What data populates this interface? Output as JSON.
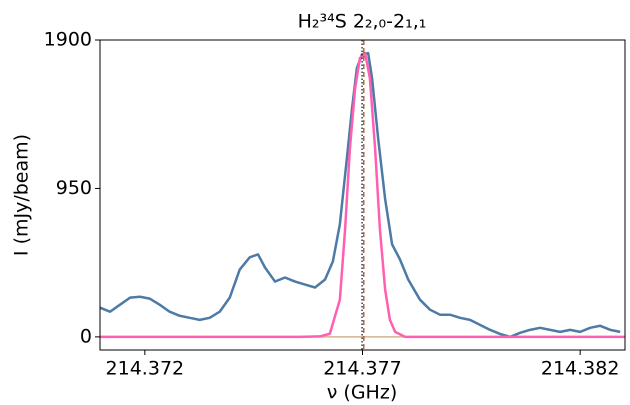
{
  "chart_data": {
    "type": "line",
    "title": "H₂³⁴S 2₂,₀-2₁,₁",
    "x_label": "ν (GHz)",
    "y_label": "I (mJy/beam)",
    "xlim": [
      214.37097,
      214.38303
    ],
    "ylim": [
      -84,
      1900
    ],
    "xticks": [
      214.372,
      214.377,
      214.382
    ],
    "yticks": [
      0,
      950,
      1900
    ],
    "series": [
      {
        "color": "#4e7aa6",
        "x": [
          214.37097,
          214.3712,
          214.37143,
          214.37166,
          214.37189,
          214.37211,
          214.37234,
          214.37257,
          214.3728,
          214.37303,
          214.37326,
          214.37349,
          214.37372,
          214.37395,
          214.37418,
          214.37441,
          214.3746,
          214.37476,
          214.37499,
          214.37522,
          214.37545,
          214.37568,
          214.37591,
          214.37614,
          214.37632,
          214.37648,
          214.37664,
          214.37676,
          214.37687,
          214.37699,
          214.37713,
          214.37722,
          214.37736,
          214.37752,
          214.37768,
          214.37786,
          214.37805,
          214.37832,
          214.37855,
          214.37878,
          214.37901,
          214.37924,
          214.37947,
          214.3797,
          214.37993,
          214.38016,
          214.38039,
          214.38062,
          214.38085,
          214.38108,
          214.38131,
          214.38154,
          214.38177,
          214.382,
          214.38223,
          214.38246,
          214.38269,
          214.38292
        ],
        "values": [
          187,
          161,
          206,
          251,
          257,
          245,
          206,
          161,
          135,
          122,
          109,
          122,
          161,
          251,
          431,
          509,
          528,
          444,
          354,
          380,
          354,
          335,
          316,
          367,
          483,
          721,
          1140,
          1462,
          1719,
          1809,
          1816,
          1655,
          1269,
          882,
          592,
          496,
          367,
          238,
          174,
          142,
          142,
          122,
          109,
          77,
          45,
          19,
          0,
          26,
          45,
          58,
          45,
          32,
          45,
          32,
          58,
          71,
          45,
          32
        ]
      },
      {
        "color": "#ff5fb0",
        "x": [
          214.37097,
          214.37556,
          214.37602,
          214.37625,
          214.37648,
          214.3766,
          214.37671,
          214.37683,
          214.37694,
          214.37706,
          214.37717,
          214.37729,
          214.3774,
          214.37752,
          214.37763,
          214.37775,
          214.37798,
          214.38303
        ],
        "values": [
          0,
          0,
          3,
          20,
          238,
          689,
          1204,
          1590,
          1784,
          1816,
          1655,
          1204,
          689,
          303,
          109,
          32,
          0,
          0
        ]
      }
    ],
    "hlines": [
      {
        "y": 0,
        "color": "#d2b48c"
      }
    ],
    "vlines": [
      {
        "x": 214.37699,
        "color": "#222222"
      },
      {
        "x": 214.37703,
        "color": "#a0522d"
      }
    ]
  }
}
